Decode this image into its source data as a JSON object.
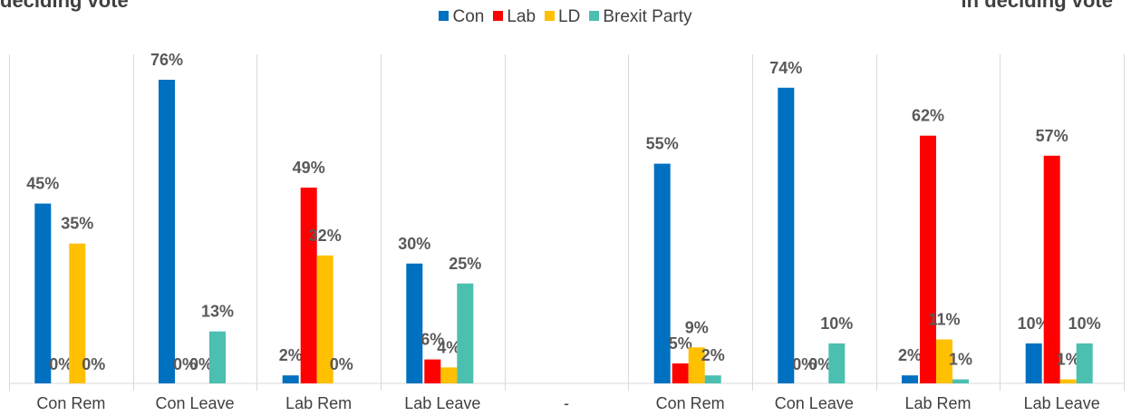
{
  "header": {
    "left_title": "deciding vote",
    "right_title": "in deciding vote"
  },
  "chart_data": {
    "type": "bar",
    "categories": [
      "Con Rem",
      "Con Leave",
      "Lab Rem",
      "Lab Leave",
      "-",
      "Con Rem",
      "Con Leave",
      "Lab Rem",
      "Lab Leave"
    ],
    "series": [
      {
        "name": "Con",
        "color": "#0070C0",
        "values": [
          45,
          76,
          2,
          30,
          null,
          55,
          74,
          2,
          10
        ]
      },
      {
        "name": "Lab",
        "color": "#FF0000",
        "values": [
          0,
          0,
          49,
          6,
          null,
          5,
          0,
          62,
          57
        ]
      },
      {
        "name": "LD",
        "color": "#FFC000",
        "values": [
          35,
          0,
          32,
          4,
          null,
          9,
          0,
          11,
          1
        ]
      },
      {
        "name": "Brexit Party",
        "color": "#4BBFB0",
        "values": [
          0,
          13,
          0,
          25,
          null,
          2,
          10,
          1,
          10
        ]
      }
    ],
    "value_suffix": "%",
    "legend_position": "top",
    "ylim": [
      0,
      80
    ],
    "grid": false
  }
}
